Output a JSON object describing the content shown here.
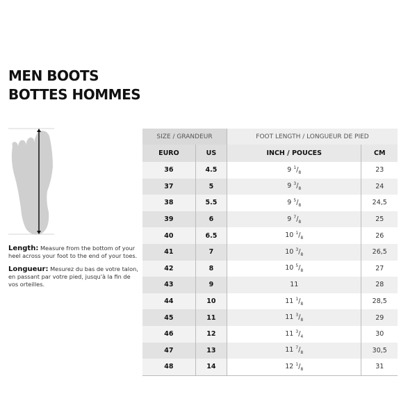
{
  "title": {
    "line1": "MEN BOOTS",
    "line2": "BOTTES HOMMES"
  },
  "description": {
    "en_label": "Length:",
    "en_text": " Measure from the bottom of your heel across your foot to the end of your toes.",
    "fr_label": "Longueur:",
    "fr_text": " Mesurez du bas de votre talon, en passant par votre pied, jusqu'à la fin de vos orteilles."
  },
  "table": {
    "group_headers": [
      "SIZE / GRANDEUR",
      "FOOT LENGTH / LONGUEUR DE PIED"
    ],
    "columns": [
      "EURO",
      "US",
      "INCH / POUCES",
      "CM"
    ],
    "rows": [
      {
        "euro": "36",
        "us": "4.5",
        "inch": {
          "whole": "9",
          "num": "1",
          "den": "8"
        },
        "cm": "23"
      },
      {
        "euro": "37",
        "us": "5",
        "inch": {
          "whole": "9",
          "num": "3",
          "den": "8"
        },
        "cm": "24"
      },
      {
        "euro": "38",
        "us": "5.5",
        "inch": {
          "whole": "9",
          "num": "5",
          "den": "8"
        },
        "cm": "24,5"
      },
      {
        "euro": "39",
        "us": "6",
        "inch": {
          "whole": "9",
          "num": "7",
          "den": "8"
        },
        "cm": "25"
      },
      {
        "euro": "40",
        "us": "6.5",
        "inch": {
          "whole": "10",
          "num": "1",
          "den": "8"
        },
        "cm": "26"
      },
      {
        "euro": "41",
        "us": "7",
        "inch": {
          "whole": "10",
          "num": "3",
          "den": "8"
        },
        "cm": "26,5"
      },
      {
        "euro": "42",
        "us": "8",
        "inch": {
          "whole": "10",
          "num": "5",
          "den": "8"
        },
        "cm": "27"
      },
      {
        "euro": "43",
        "us": "9",
        "inch": {
          "whole": "11",
          "num": "",
          "den": ""
        },
        "cm": "28"
      },
      {
        "euro": "44",
        "us": "10",
        "inch": {
          "whole": "11",
          "num": "1",
          "den": "8"
        },
        "cm": "28,5"
      },
      {
        "euro": "45",
        "us": "11",
        "inch": {
          "whole": "11",
          "num": "3",
          "den": "8"
        },
        "cm": "29"
      },
      {
        "euro": "46",
        "us": "12",
        "inch": {
          "whole": "11",
          "num": "3",
          "den": "4"
        },
        "cm": "30"
      },
      {
        "euro": "47",
        "us": "13",
        "inch": {
          "whole": "11",
          "num": "7",
          "den": "8"
        },
        "cm": "30,5"
      },
      {
        "euro": "48",
        "us": "14",
        "inch": {
          "whole": "12",
          "num": "1",
          "den": "8"
        },
        "cm": "31"
      }
    ]
  }
}
